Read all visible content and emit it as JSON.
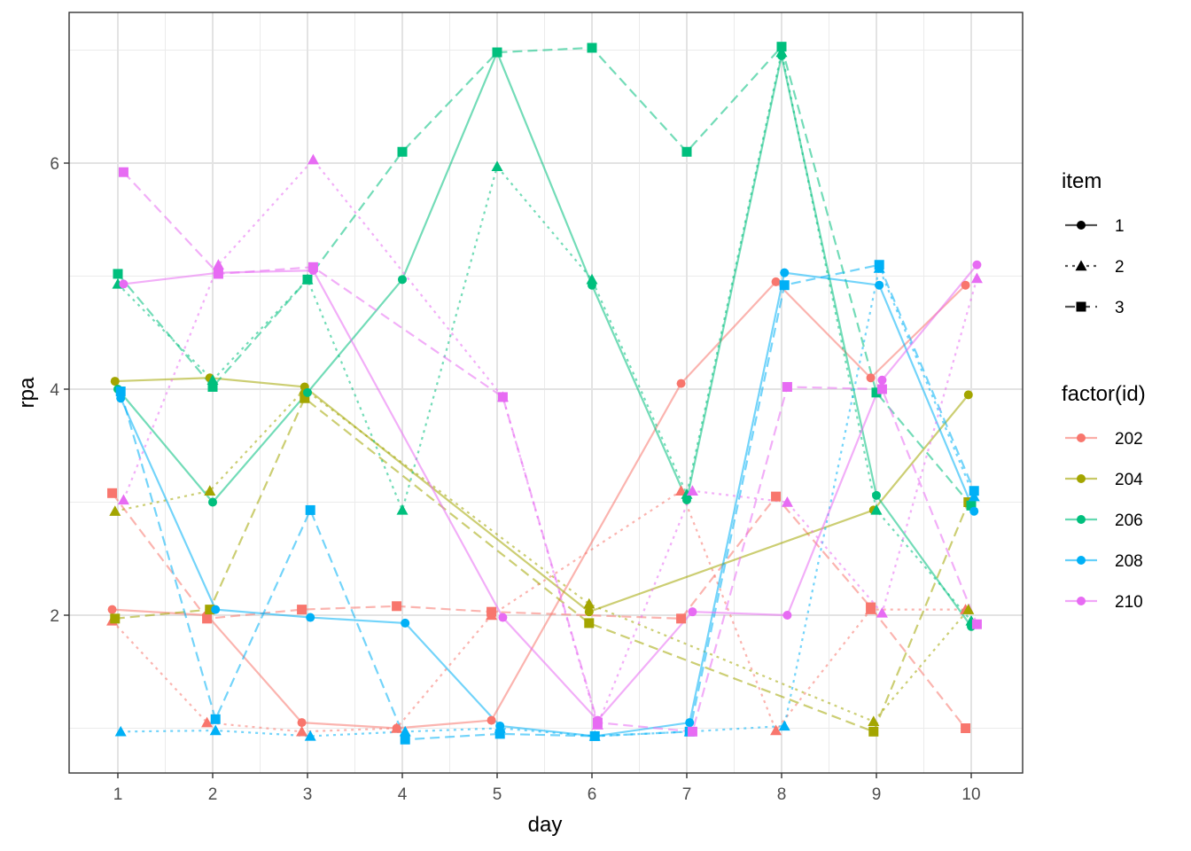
{
  "chart_data": {
    "type": "line",
    "xlabel": "day",
    "ylabel": "rpa",
    "x_ticks": [
      1,
      2,
      3,
      4,
      5,
      6,
      7,
      8,
      9,
      10
    ],
    "y_ticks": [
      2,
      4,
      6
    ],
    "xlim": [
      0.5,
      10.5
    ],
    "ylim": [
      0.75,
      7.2
    ],
    "grid": true,
    "legend_position": "right",
    "legend_item": {
      "title": "item",
      "entries": [
        {
          "label": "1",
          "shape": "circle",
          "linetype": "solid"
        },
        {
          "label": "2",
          "shape": "triangle",
          "linetype": "dotted"
        },
        {
          "label": "3",
          "shape": "square",
          "linetype": "dashed"
        }
      ]
    },
    "legend_id": {
      "title": "factor(id)",
      "entries": [
        {
          "label": "202",
          "color": "#F8766D"
        },
        {
          "label": "204",
          "color": "#A3A500"
        },
        {
          "label": "206",
          "color": "#00BF7D"
        },
        {
          "label": "208",
          "color": "#00B0F6"
        },
        {
          "label": "210",
          "color": "#E76BF3"
        }
      ]
    },
    "series": [
      {
        "id": "202",
        "item": "1",
        "points": [
          [
            1,
            2.05
          ],
          [
            2,
            2.0
          ],
          [
            3,
            1.05
          ],
          [
            4,
            1.0
          ],
          [
            5,
            1.07
          ],
          [
            7,
            4.05
          ],
          [
            8,
            4.95
          ],
          [
            9,
            4.1
          ],
          [
            10,
            4.92
          ]
        ]
      },
      {
        "id": "202",
        "item": "2",
        "points": [
          [
            1,
            1.95
          ],
          [
            2,
            1.05
          ],
          [
            3,
            0.97
          ],
          [
            4,
            1.0
          ],
          [
            5,
            2.0
          ],
          [
            7,
            3.1
          ],
          [
            8,
            0.98
          ],
          [
            9,
            2.05
          ],
          [
            10,
            2.05
          ]
        ]
      },
      {
        "id": "202",
        "item": "3",
        "points": [
          [
            1,
            3.08
          ],
          [
            2,
            1.97
          ],
          [
            3,
            2.05
          ],
          [
            4,
            2.08
          ],
          [
            5,
            2.03
          ],
          [
            7,
            1.97
          ],
          [
            8,
            3.05
          ],
          [
            9,
            2.07
          ],
          [
            10,
            1.0
          ]
        ]
      },
      {
        "id": "204",
        "item": "1",
        "points": [
          [
            1,
            4.07
          ],
          [
            2,
            4.1
          ],
          [
            3,
            4.02
          ],
          [
            6,
            2.03
          ],
          [
            9,
            2.93
          ],
          [
            10,
            3.95
          ]
        ]
      },
      {
        "id": "204",
        "item": "2",
        "points": [
          [
            1,
            2.92
          ],
          [
            2,
            3.1
          ],
          [
            3,
            4.0
          ],
          [
            6,
            2.1
          ],
          [
            9,
            1.06
          ],
          [
            10,
            2.05
          ]
        ]
      },
      {
        "id": "204",
        "item": "3",
        "points": [
          [
            1,
            1.97
          ],
          [
            2,
            2.05
          ],
          [
            3,
            3.92
          ],
          [
            6,
            1.93
          ],
          [
            9,
            0.97
          ],
          [
            10,
            3.0
          ]
        ]
      },
      {
        "id": "206",
        "item": "1",
        "points": [
          [
            1,
            4.0
          ],
          [
            2,
            3.0
          ],
          [
            3,
            3.97
          ],
          [
            4,
            4.97
          ],
          [
            5,
            6.98
          ],
          [
            6,
            4.92
          ],
          [
            7,
            3.02
          ],
          [
            8,
            6.95
          ],
          [
            9,
            3.06
          ],
          [
            10,
            1.9
          ]
        ]
      },
      {
        "id": "206",
        "item": "2",
        "points": [
          [
            1,
            4.93
          ],
          [
            2,
            4.08
          ],
          [
            3,
            4.97
          ],
          [
            4,
            2.93
          ],
          [
            5,
            5.97
          ],
          [
            6,
            4.97
          ],
          [
            7,
            3.07
          ],
          [
            8,
            6.98
          ],
          [
            9,
            2.93
          ],
          [
            10,
            1.95
          ]
        ]
      },
      {
        "id": "206",
        "item": "3",
        "points": [
          [
            1,
            5.02
          ],
          [
            2,
            4.02
          ],
          [
            3,
            4.97
          ],
          [
            4,
            6.1
          ],
          [
            5,
            6.98
          ],
          [
            6,
            7.02
          ],
          [
            7,
            6.1
          ],
          [
            8,
            7.03
          ],
          [
            9,
            3.97
          ],
          [
            10,
            2.97
          ]
        ]
      },
      {
        "id": "208",
        "item": "1",
        "points": [
          [
            1,
            3.92
          ],
          [
            2,
            2.05
          ],
          [
            3,
            1.98
          ],
          [
            4,
            1.93
          ],
          [
            5,
            1.02
          ],
          [
            6,
            0.93
          ],
          [
            7,
            1.05
          ],
          [
            8,
            5.03
          ],
          [
            9,
            4.92
          ],
          [
            10,
            2.92
          ]
        ]
      },
      {
        "id": "208",
        "item": "2",
        "points": [
          [
            1,
            0.97
          ],
          [
            2,
            0.98
          ],
          [
            3,
            0.93
          ],
          [
            4,
            0.97
          ],
          [
            5,
            1.0
          ],
          [
            6,
            0.93
          ],
          [
            7,
            0.97
          ],
          [
            8,
            1.02
          ],
          [
            9,
            5.07
          ],
          [
            10,
            3.05
          ]
        ]
      },
      {
        "id": "208",
        "item": "3",
        "points": [
          [
            1,
            3.98
          ],
          [
            2,
            1.08
          ],
          [
            3,
            2.93
          ],
          [
            4,
            0.9
          ],
          [
            5,
            0.95
          ],
          [
            6,
            0.93
          ],
          [
            7,
            0.97
          ],
          [
            8,
            4.92
          ],
          [
            9,
            5.1
          ],
          [
            10,
            3.1
          ]
        ]
      },
      {
        "id": "210",
        "item": "1",
        "points": [
          [
            1,
            4.93
          ],
          [
            2,
            5.03
          ],
          [
            3,
            5.05
          ],
          [
            5,
            1.98
          ],
          [
            6,
            1.07
          ],
          [
            7,
            2.03
          ],
          [
            8,
            2.0
          ],
          [
            9,
            4.08
          ],
          [
            10,
            5.1
          ]
        ]
      },
      {
        "id": "210",
        "item": "2",
        "points": [
          [
            1,
            3.02
          ],
          [
            2,
            5.1
          ],
          [
            3,
            6.03
          ],
          [
            5,
            3.93
          ],
          [
            6,
            1.03
          ],
          [
            7,
            3.1
          ],
          [
            8,
            3.0
          ],
          [
            9,
            2.02
          ],
          [
            10,
            4.98
          ]
        ]
      },
      {
        "id": "210",
        "item": "3",
        "points": [
          [
            1,
            5.92
          ],
          [
            2,
            5.02
          ],
          [
            3,
            5.08
          ],
          [
            5,
            3.93
          ],
          [
            6,
            1.05
          ],
          [
            7,
            0.97
          ],
          [
            8,
            4.02
          ],
          [
            9,
            4.0
          ],
          [
            10,
            1.92
          ]
        ]
      }
    ]
  }
}
